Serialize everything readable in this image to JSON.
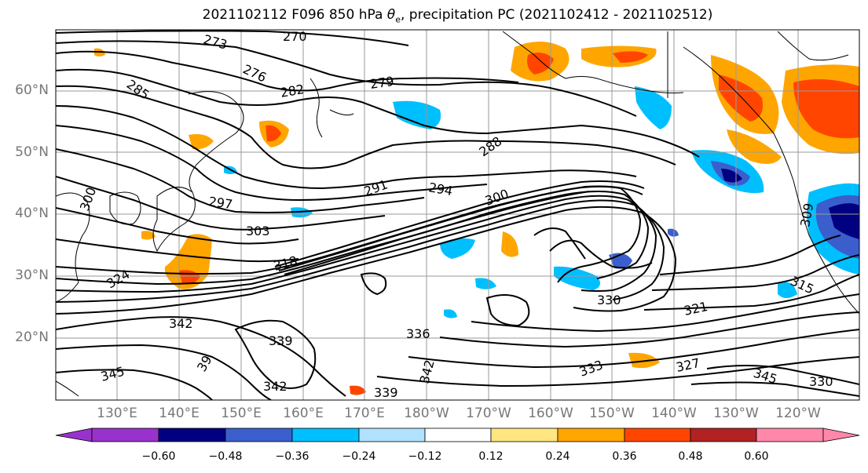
{
  "title": {
    "prefix": "2021102112 F096 850 hPa ",
    "theta_base": "θ",
    "theta_sub": "e",
    "suffix": ", precipitation PC (2021102412 - 2021102512)"
  },
  "lat_labels": [
    "20°N",
    "30°N",
    "40°N",
    "50°N",
    "60°N"
  ],
  "lon_labels": [
    "130°E",
    "140°E",
    "150°E",
    "160°E",
    "170°E",
    "180°W",
    "170°W",
    "160°W",
    "150°W",
    "140°W",
    "130°W",
    "120°W"
  ],
  "contour_labels": [
    "273",
    "270",
    "276",
    "285",
    "282",
    "279",
    "288",
    "291",
    "294",
    "297",
    "300",
    "303",
    "318",
    "324",
    "300",
    "309",
    "315",
    "342",
    "339",
    "336",
    "330",
    "321",
    "345",
    "342",
    "339",
    "342",
    "333",
    "327",
    "345",
    "330",
    "39"
  ],
  "colorbar": {
    "ticks": [
      "−0.60",
      "−0.48",
      "−0.36",
      "−0.24",
      "−0.12",
      "0.12",
      "0.24",
      "0.36",
      "0.48",
      "0.60"
    ],
    "colors": {
      "under": "#9932cc",
      "c1": "#000080",
      "c2": "#3a5fcd",
      "c3": "#00bfff",
      "c4": "#b0e2ff",
      "c5": "#ffffff",
      "c6": "#ffe680",
      "c7": "#ffa500",
      "c8": "#ff4500",
      "c9": "#b22222",
      "c10": "#ff88aa",
      "over": "#ff88aa"
    }
  }
}
